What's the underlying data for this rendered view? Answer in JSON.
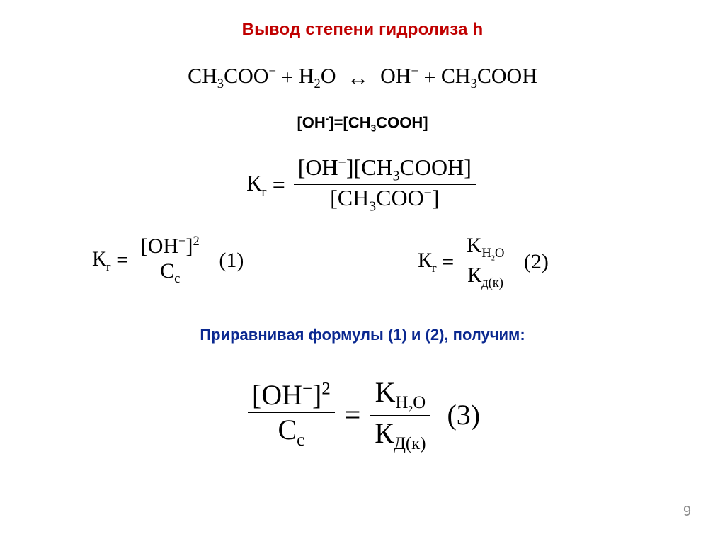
{
  "title": {
    "text": "Вывод степени гидролиза h",
    "color": "#c00000",
    "fontsize": 24
  },
  "reaction": {
    "left1": "CH",
    "left1_sub": "3",
    "left1_tail": "COO",
    "left1_sup": "−",
    "plus1": "+",
    "water_h": "H",
    "water_sub": "2",
    "water_o": "O",
    "arrow": "↔",
    "right1": "OH",
    "right1_sup": "−",
    "plus2": "+",
    "right2": "CH",
    "right2_sub": "3",
    "right2_tail": "COOH"
  },
  "equality": {
    "left": "[OH",
    "left_sup": "-",
    "left_close": "]=",
    "right": "[CH",
    "right_sub": "3",
    "right_tail": "COOH]"
  },
  "Kg": {
    "K": "К",
    "K_sub": "г",
    "eq": "=",
    "num1": "[OH",
    "num1_sup": "−",
    "num1_close": "][CH",
    "num1_sub": "3",
    "num1_tail": "COOH]",
    "den1": "[CH",
    "den1_sub": "3",
    "den1_tail": "COO",
    "den1_sup": "−",
    "den1_close": "]"
  },
  "eq1": {
    "K": "К",
    "K_sub": "г",
    "eq": "=",
    "num": "[OH",
    "num_sup": "−",
    "num_close": "]",
    "num_pow": "2",
    "den": "C",
    "den_sub": "c",
    "tag": "(1)"
  },
  "eq2": {
    "K": "К",
    "K_sub": "г",
    "eq": "=",
    "num": "K",
    "num_sub_h": "H",
    "num_sub_2": "2",
    "num_sub_o": "O",
    "den": "К",
    "den_sub": "д(к)",
    "tag": "(2)"
  },
  "caption": {
    "text": "Приравнивая формулы (1) и (2), получим:",
    "color": "#0a2890",
    "fontsize": 22
  },
  "eq3": {
    "left_num": "[OH",
    "left_num_sup": "−",
    "left_num_close": "]",
    "left_num_pow": "2",
    "left_den": "C",
    "left_den_sub": "c",
    "eq": "=",
    "right_num": "K",
    "right_num_sub_h": "H",
    "right_num_sub_2": "2",
    "right_num_sub_o": "O",
    "right_den": "К",
    "right_den_sub": "Д(к)",
    "tag": "(3)"
  },
  "page_number": "9",
  "colors": {
    "title": "#c00000",
    "caption": "#0a2890",
    "text": "#000000",
    "page_number": "#8a8a8a",
    "background": "#ffffff"
  }
}
